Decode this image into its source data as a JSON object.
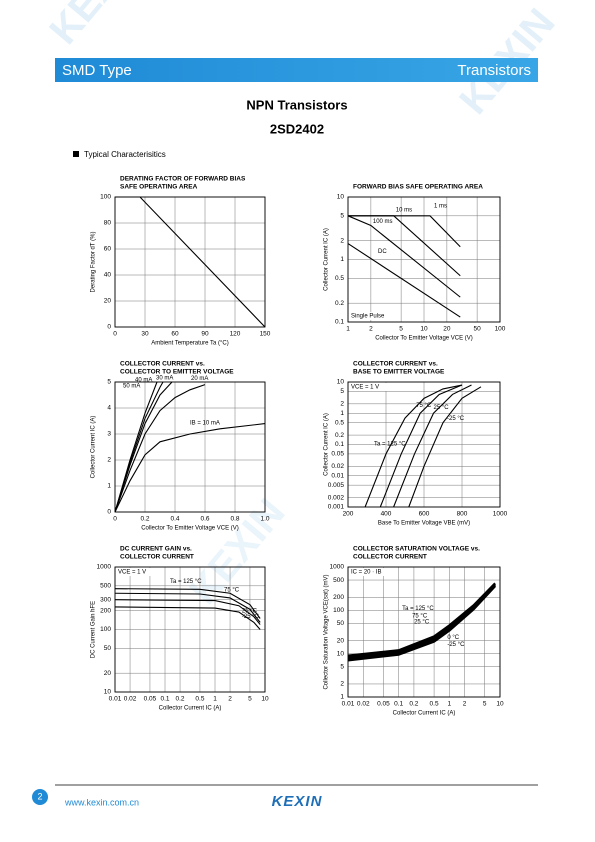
{
  "header": {
    "left": "SMD Type",
    "right": "Transistors"
  },
  "watermark": "KEXIN",
  "title": "NPN  Transistors",
  "part": "2SD2402",
  "section": "Typical  Characterisitics",
  "chart_data": [
    {
      "type": "line",
      "title": [
        "DERATING FACTOR OF FORWARD BIAS",
        "SAFE OPERATING AREA"
      ],
      "x_label": "Ambient Temperature  Ta (°C)",
      "y_label": "Derating Factor  dT (%)",
      "xlim": [
        0,
        150
      ],
      "ylim": [
        0,
        100
      ],
      "xticks": [
        0,
        30,
        60,
        90,
        120,
        150
      ],
      "yticks": [
        0,
        20,
        40,
        60,
        80,
        100
      ],
      "grid": true,
      "series": [
        {
          "color": "#000000",
          "x": [
            0,
            25,
            150
          ],
          "values": [
            100,
            100,
            0
          ]
        }
      ]
    },
    {
      "type": "line",
      "title": [
        "FORWARD BIAS SAFE OPERATING AREA"
      ],
      "x_scale": "log",
      "y_scale": "log",
      "x_label": "Collector To Emitter Voltage  VCE (V)",
      "y_label": "Collector Current  IC (A)",
      "annotation": "Single Pulse",
      "xlim": [
        1,
        100
      ],
      "ylim": [
        0.1,
        10
      ],
      "xticks": [
        1,
        2,
        5,
        10,
        20,
        50,
        100
      ],
      "yticks": [
        0.1,
        0.2,
        0.5,
        1,
        2,
        5,
        10
      ],
      "grid": true,
      "series": [
        {
          "name": "1 ms",
          "color": "#000000",
          "x": [
            1,
            12,
            30
          ],
          "values": [
            5,
            5,
            1.6
          ]
        },
        {
          "name": "10 ms",
          "color": "#000000",
          "x": [
            1,
            4,
            30
          ],
          "values": [
            5,
            5,
            0.55
          ]
        },
        {
          "name": "100 ms",
          "color": "#000000",
          "x": [
            1,
            2,
            30
          ],
          "values": [
            5,
            3.5,
            0.25
          ]
        },
        {
          "name": "DC",
          "color": "#000000",
          "x": [
            1,
            30
          ],
          "values": [
            1.8,
            0.12
          ]
        }
      ]
    },
    {
      "type": "line",
      "title": [
        "COLLECTOR CURRENT vs.",
        "COLLECTOR TO EMITTER VOLTAGE"
      ],
      "x_label": "Collector To Emitter Voltage  VCE (V)",
      "y_label": "Collector Current  IC (A)",
      "xlim": [
        0,
        1
      ],
      "ylim": [
        0,
        5
      ],
      "xticks": [
        0,
        0.2,
        0.4,
        0.6,
        0.8,
        {
          "value": 1,
          "label": "1.0"
        }
      ],
      "yticks": [
        0,
        1,
        2,
        3,
        4,
        5
      ],
      "grid": true,
      "series": [
        {
          "name": "IB = 10 mA",
          "color": "#000000",
          "x": [
            0,
            0.1,
            0.2,
            0.3,
            0.5,
            0.7,
            1
          ],
          "values": [
            0,
            1.2,
            2.2,
            2.7,
            3,
            3.2,
            3.4
          ]
        },
        {
          "name": "20 mA",
          "color": "#000000",
          "x": [
            0,
            0.1,
            0.2,
            0.3,
            0.4,
            0.5,
            0.6
          ],
          "values": [
            0,
            1.6,
            3,
            3.9,
            4.4,
            4.7,
            4.9
          ]
        },
        {
          "name": "30 mA",
          "color": "#000000",
          "x": [
            0,
            0.1,
            0.2,
            0.3,
            0.38
          ],
          "values": [
            0,
            1.8,
            3.4,
            4.5,
            5
          ]
        },
        {
          "name": "40 mA",
          "color": "#000000",
          "x": [
            0,
            0.1,
            0.2,
            0.3,
            0.32
          ],
          "values": [
            0,
            1.9,
            3.6,
            4.8,
            5
          ]
        },
        {
          "name": "50 mA",
          "color": "#000000",
          "x": [
            0,
            0.1,
            0.2,
            0.28
          ],
          "values": [
            0,
            2,
            3.8,
            5
          ]
        }
      ]
    },
    {
      "type": "line",
      "title": [
        "COLLECTOR CURRENT vs.",
        "BASE TO EMITTER VOLTAGE"
      ],
      "y_scale": "log",
      "x_label": "Base To Emitter Voltage  VBE (mV)",
      "y_label": "Collector Current  IC (A)",
      "annotation": "VCE = 1 V",
      "xlim": [
        200,
        1000
      ],
      "ylim": [
        0.001,
        10
      ],
      "xticks": [
        200,
        400,
        600,
        800,
        1000
      ],
      "yticks": [
        0.001,
        0.002,
        0.005,
        0.01,
        0.02,
        0.05,
        0.1,
        0.2,
        0.5,
        1,
        2,
        5,
        10
      ],
      "grid": true,
      "series": [
        {
          "name": "Ta = 125 °C",
          "color": "#000000",
          "x": [
            290,
            400,
            500,
            600,
            700,
            800
          ],
          "values": [
            0.001,
            0.05,
            0.7,
            3,
            6,
            8
          ]
        },
        {
          "name": "75 °C",
          "color": "#000000",
          "x": [
            370,
            480,
            580,
            680,
            800
          ],
          "values": [
            0.001,
            0.05,
            1,
            4,
            8
          ]
        },
        {
          "name": "25 °C",
          "color": "#000000",
          "x": [
            440,
            550,
            650,
            750,
            850
          ],
          "values": [
            0.001,
            0.05,
            1,
            4,
            8
          ]
        },
        {
          "name": "-25 °C",
          "color": "#000000",
          "x": [
            520,
            600,
            700,
            800,
            900
          ],
          "values": [
            0.001,
            0.02,
            0.5,
            3,
            7
          ]
        }
      ]
    },
    {
      "type": "line",
      "title": [
        "DC CURRENT GAIN vs.",
        "COLLECTOR CURRENT"
      ],
      "x_scale": "log",
      "y_scale": "log",
      "x_label": "Collector Current  IC (A)",
      "y_label": "DC Current Gain  hFE",
      "annotation": "VCE = 1 V",
      "xlim": [
        0.01,
        10
      ],
      "ylim": [
        10,
        1000
      ],
      "xticks": [
        0.01,
        0.02,
        0.05,
        0.1,
        0.2,
        0.5,
        1,
        2,
        5,
        10
      ],
      "yticks": [
        10,
        20,
        50,
        100,
        200,
        300,
        500,
        1000
      ],
      "grid": true,
      "series": [
        {
          "name": "Ta = 125 °C",
          "color": "#000000",
          "x": [
            0.01,
            0.5,
            2,
            5,
            8
          ],
          "values": [
            450,
            440,
            380,
            250,
            150
          ]
        },
        {
          "name": "75 °C",
          "color": "#000000",
          "x": [
            0.01,
            0.5,
            2,
            5,
            8
          ],
          "values": [
            380,
            370,
            320,
            210,
            130
          ]
        },
        {
          "name": "25 °C",
          "color": "#000000",
          "x": [
            0.01,
            1,
            3,
            6,
            8
          ],
          "values": [
            300,
            290,
            240,
            160,
            120
          ]
        },
        {
          "name": "-25 °C",
          "color": "#000000",
          "x": [
            0.01,
            1,
            3,
            6,
            8
          ],
          "values": [
            230,
            220,
            190,
            130,
            100
          ]
        }
      ]
    },
    {
      "type": "line",
      "title": [
        "COLLECTOR SATURATION VOLTAGE vs.",
        "COLLECTOR CURRENT"
      ],
      "x_scale": "log",
      "y_scale": "log",
      "x_label": "Collector Current  IC (A)",
      "y_label": "Collector Saturation Voltage  VCE(sat) (mV)",
      "annotation": "IC = 20 · IB",
      "xlim": [
        0.01,
        10
      ],
      "ylim": [
        1,
        1000
      ],
      "xticks": [
        0.01,
        0.02,
        0.05,
        0.1,
        0.2,
        0.5,
        1,
        2,
        5,
        10
      ],
      "yticks": [
        1,
        2,
        5,
        10,
        20,
        50,
        100,
        200,
        500,
        1000
      ],
      "grid": true,
      "series": [
        {
          "name": "Ta = 125 °C",
          "color": "#000000",
          "x": [
            0.01,
            0.1,
            0.5,
            1,
            3,
            8
          ],
          "values": [
            9,
            12,
            25,
            45,
            130,
            420
          ]
        },
        {
          "name": "75 °C",
          "color": "#000000",
          "x": [
            0.01,
            0.1,
            0.5,
            1,
            3,
            8
          ],
          "values": [
            8.5,
            11,
            23,
            42,
            122,
            400
          ]
        },
        {
          "name": "25 °C",
          "color": "#000000",
          "x": [
            0.01,
            0.1,
            0.5,
            1,
            3,
            8
          ],
          "values": [
            8,
            10.5,
            21,
            38,
            115,
            380
          ]
        },
        {
          "name": "0 °C",
          "color": "#000000",
          "x": [
            0.01,
            0.1,
            0.5,
            1,
            3,
            8
          ],
          "values": [
            7.5,
            10,
            20,
            36,
            110,
            370
          ]
        },
        {
          "name": "-25 °C",
          "color": "#000000",
          "x": [
            0.01,
            0.1,
            0.5,
            1,
            3,
            8
          ],
          "values": [
            7,
            9.5,
            19,
            34,
            105,
            360
          ]
        }
      ]
    }
  ],
  "footer": {
    "page": "2",
    "url": "www.kexin.com.cn",
    "logo": "KEXIN"
  }
}
